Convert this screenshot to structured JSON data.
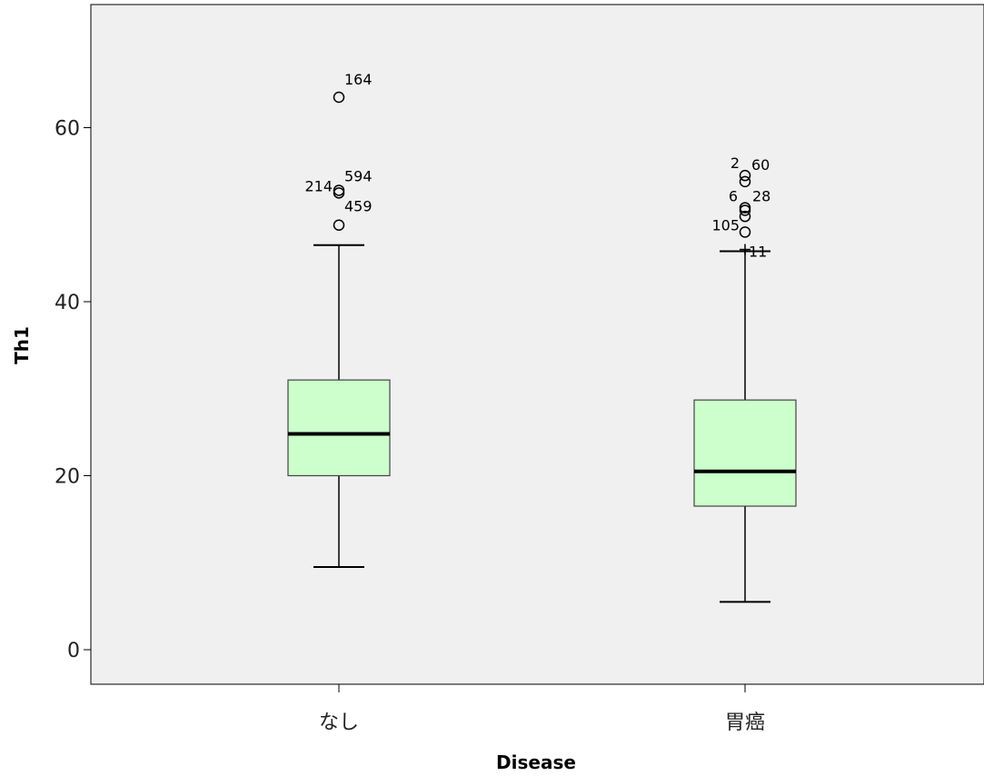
{
  "chart_data": {
    "type": "boxplot",
    "xlabel": "Disease",
    "ylabel": "Th1",
    "ylim": [
      -4,
      74
    ],
    "yticks": [
      0,
      20,
      40,
      60
    ],
    "grid": false,
    "colors": {
      "plot_bg": "#f0f0f0",
      "box_fill": "#ccffcc",
      "line": "#000000"
    },
    "categories": [
      {
        "label": "なし",
        "whisker_low": 9.5,
        "q1": 20.0,
        "median": 24.8,
        "q3": 31.0,
        "whisker_high": 46.5,
        "outliers": [
          {
            "value": 63.5,
            "label": "164"
          },
          {
            "value": 52.8,
            "label": "594"
          },
          {
            "value": 52.5,
            "label": "214"
          },
          {
            "value": 48.8,
            "label": "459"
          }
        ]
      },
      {
        "label": "胃癌",
        "whisker_low": 5.5,
        "q1": 16.5,
        "median": 20.5,
        "q3": 28.7,
        "whisker_high": 45.8,
        "outliers": [
          {
            "value": 54.5,
            "label": "60"
          },
          {
            "value": 53.8,
            "label": "2"
          },
          {
            "value": 50.8,
            "label": "28"
          },
          {
            "value": 50.5,
            "label": "6"
          },
          {
            "value": 49.8,
            "label": ""
          },
          {
            "value": 48.0,
            "label": "105"
          },
          {
            "value": 46.0,
            "label": "11"
          }
        ]
      }
    ]
  }
}
